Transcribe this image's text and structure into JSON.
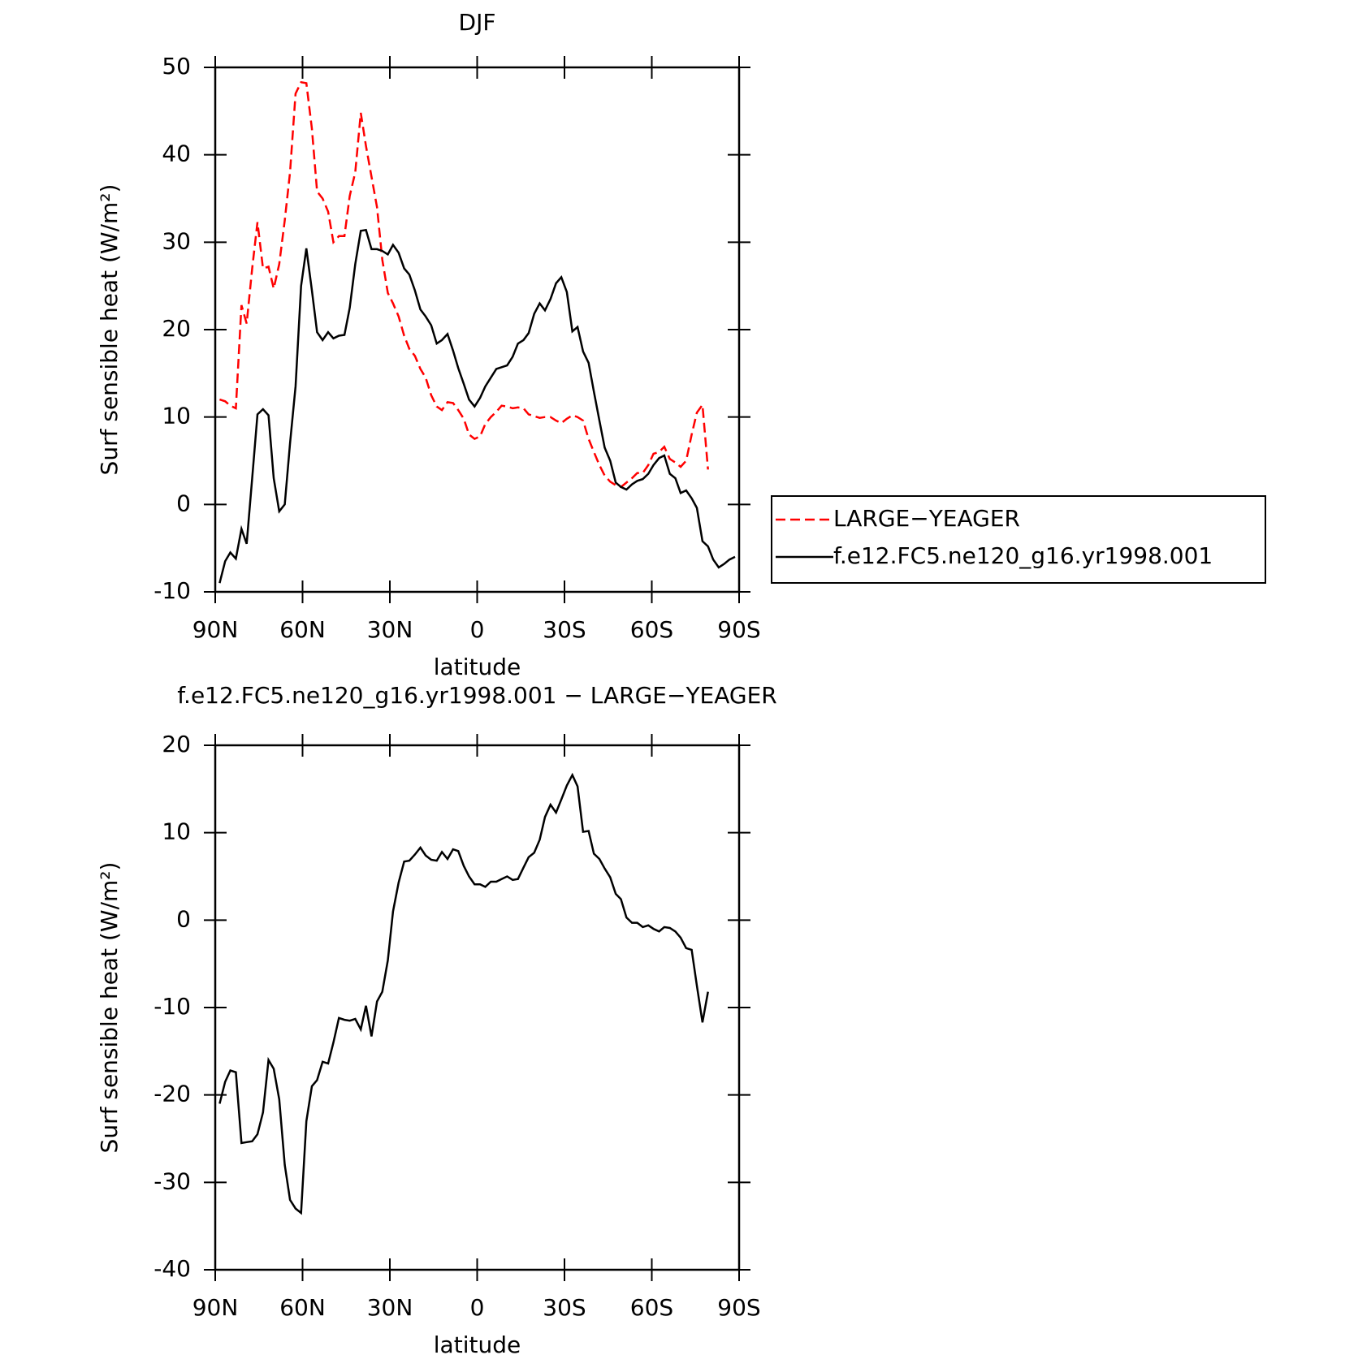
{
  "chart_data": [
    {
      "type": "line",
      "title": "DJF",
      "xlabel": "latitude",
      "ylabel": "Surf sensible heat (W/m²)",
      "xlim": [
        90,
        -90
      ],
      "xticks": [
        {
          "value": 90,
          "label": "90N"
        },
        {
          "value": 60,
          "label": "60N"
        },
        {
          "value": 30,
          "label": "30N"
        },
        0,
        {
          "value": -30,
          "label": "30S"
        },
        {
          "value": -60,
          "label": "60S"
        },
        {
          "value": -90,
          "label": "90S"
        }
      ],
      "ylim": [
        -10,
        50
      ],
      "yticks": [
        -10,
        0,
        10,
        20,
        30,
        40,
        50
      ],
      "legend": "right",
      "x": [
        88.5,
        86.6,
        84.8,
        82.9,
        81.0,
        79.2,
        77.3,
        75.5,
        73.6,
        71.7,
        69.9,
        68.0,
        66.1,
        64.3,
        62.4,
        60.5,
        58.7,
        56.8,
        55.0,
        53.1,
        51.2,
        49.4,
        47.5,
        45.6,
        43.8,
        41.9,
        40.0,
        38.2,
        36.3,
        34.4,
        32.6,
        30.7,
        28.9,
        27.0,
        25.1,
        23.3,
        21.4,
        19.5,
        17.7,
        15.8,
        13.9,
        12.1,
        10.2,
        8.3,
        6.5,
        4.6,
        2.8,
        0.9,
        -1.0,
        -2.8,
        -4.7,
        -6.6,
        -8.4,
        -10.3,
        -12.2,
        -14.0,
        -15.9,
        -17.7,
        -19.6,
        -21.5,
        -23.3,
        -25.2,
        -27.1,
        -28.9,
        -30.8,
        -32.7,
        -34.5,
        -36.4,
        -38.3,
        -40.1,
        -42.0,
        -43.8,
        -45.7,
        -47.6,
        -49.4,
        -51.3,
        -53.2,
        -55.0,
        -56.9,
        -58.8,
        -60.6,
        -62.5,
        -64.3,
        -66.2,
        -68.1,
        -69.9,
        -71.8,
        -73.7,
        -75.5,
        -77.4,
        -79.3,
        -81.1,
        -83.0,
        -84.9,
        -86.7,
        -88.6
      ],
      "series": [
        {
          "name": "LARGE−YEAGER",
          "color": "#ff0000",
          "dash": "dashed",
          "values": [
            12,
            11.8,
            11.3,
            11,
            22.8,
            20.7,
            27,
            32.3,
            27,
            27.2,
            24.7,
            27.5,
            32.5,
            38,
            47,
            48.3,
            48.2,
            43,
            35.8,
            35,
            33.5,
            30,
            30.7,
            30.7,
            35.3,
            38,
            44.8,
            41,
            37.5,
            34,
            28,
            24.2,
            23,
            21.5,
            19.3,
            17.8,
            17,
            15.5,
            14.5,
            12.5,
            11.2,
            10.8,
            11.7,
            11.6,
            10.8,
            9.8,
            8,
            7.5,
            7.8,
            9.2,
            10,
            10.6,
            11.3,
            11.2,
            11,
            11.1,
            11,
            10.3,
            10.1,
            9.9,
            10,
            10,
            9.6,
            9.3,
            9.8,
            10.2,
            10,
            9.6,
            7.5,
            6,
            4.5,
            3.3,
            2.6,
            2.2,
            2,
            2.5,
            3,
            3.6,
            3.6,
            4.5,
            5.8,
            6,
            6.6,
            5.2,
            4.8,
            4.3,
            5,
            8,
            10.5,
            11.4,
            4,
            null,
            null,
            null,
            null,
            null
          ]
        },
        {
          "name": "f.e12.FC5.ne120_g16.yr1998.001",
          "color": "#000000",
          "dash": "solid",
          "values": [
            -9,
            -6.5,
            -5.5,
            -6.2,
            -2.8,
            -4.5,
            3,
            10.3,
            10.9,
            10.2,
            3,
            -0.8,
            0,
            7,
            13.5,
            25,
            29.3,
            24.5,
            19.7,
            18.8,
            19.7,
            19,
            19.3,
            19.4,
            22.5,
            27.5,
            31.3,
            31.4,
            29.2,
            29.2,
            29,
            28.6,
            29.7,
            28.8,
            27,
            26.3,
            24.5,
            22.3,
            21.5,
            20.5,
            18.4,
            18.8,
            19.5,
            17.6,
            15.6,
            13.8,
            12,
            11.2,
            12.2,
            13.5,
            14.5,
            15.5,
            15.7,
            15.9,
            16.9,
            18.4,
            18.8,
            19.6,
            21.8,
            23,
            22.2,
            23.5,
            25.3,
            26,
            24.3,
            19.8,
            20.3,
            17.5,
            16.2,
            12.9,
            9.6,
            6.5,
            5,
            2.5,
            2,
            1.7,
            2.3,
            2.7,
            2.9,
            3.5,
            4.5,
            5.3,
            5.6,
            3.5,
            3,
            1.3,
            1.6,
            0.7,
            -0.4,
            -4.2,
            -4.8,
            -6.3,
            -7.2,
            -6.8,
            -6.3,
            -6
          ]
        }
      ]
    },
    {
      "type": "line",
      "title": "f.e12.FC5.ne120_g16.yr1998.001 − LARGE−YEAGER",
      "xlabel": "latitude",
      "ylabel": "Surf sensible heat (W/m²)",
      "xlim": [
        90,
        -90
      ],
      "xticks": [
        {
          "value": 90,
          "label": "90N"
        },
        {
          "value": 60,
          "label": "60N"
        },
        {
          "value": 30,
          "label": "30N"
        },
        0,
        {
          "value": -30,
          "label": "30S"
        },
        {
          "value": -60,
          "label": "60S"
        },
        {
          "value": -90,
          "label": "90S"
        }
      ],
      "ylim": [
        -40,
        20
      ],
      "yticks": [
        -40,
        -30,
        -20,
        -10,
        0,
        10,
        20
      ],
      "x": [
        88.5,
        86.6,
        84.8,
        82.9,
        81.0,
        79.2,
        77.3,
        75.5,
        73.6,
        71.7,
        69.9,
        68.0,
        66.1,
        64.3,
        62.4,
        60.5,
        58.7,
        56.8,
        55.0,
        53.1,
        51.2,
        49.4,
        47.5,
        45.6,
        43.8,
        41.9,
        40.0,
        38.2,
        36.3,
        34.4,
        32.6,
        30.7,
        28.9,
        27.0,
        25.1,
        23.3,
        21.4,
        19.5,
        17.7,
        15.8,
        13.9,
        12.1,
        10.2,
        8.3,
        6.5,
        4.6,
        2.8,
        0.9,
        -1.0,
        -2.8,
        -4.7,
        -6.6,
        -8.4,
        -10.3,
        -12.2,
        -14.0,
        -15.9,
        -17.7,
        -19.6,
        -21.5,
        -23.3,
        -25.2,
        -27.1,
        -28.9,
        -30.8,
        -32.7,
        -34.5,
        -36.4,
        -38.3,
        -40.1,
        -42.0,
        -43.8,
        -45.7,
        -47.6,
        -49.4,
        -51.3,
        -53.2,
        -55.0,
        -56.9,
        -58.8,
        -60.6,
        -62.5,
        -64.3,
        -66.2,
        -68.1,
        -69.9,
        -71.8,
        -73.7,
        -75.5,
        -77.4,
        -79.3,
        -81.1,
        -83.0,
        -84.9,
        -86.7,
        -88.6
      ],
      "series": [
        {
          "color": "#000000",
          "dash": "solid",
          "values": [
            -21,
            -18.5,
            -17.2,
            -17.4,
            -25.5,
            -25.4,
            -25.3,
            -24.5,
            -22,
            -16,
            -17,
            -20.5,
            -28,
            -32,
            -33,
            -33.5,
            -23,
            -19,
            -18.3,
            -16.2,
            -16.4,
            -14,
            -11.2,
            -11.4,
            -11.5,
            -11.3,
            -12.5,
            -9.8,
            -13.3,
            -9.3,
            -8.2,
            -4.6,
            1,
            4.3,
            6.7,
            6.8,
            7.5,
            8.3,
            7.4,
            6.9,
            6.8,
            7.8,
            7,
            8.1,
            7.9,
            6.2,
            5,
            4.1,
            4.1,
            3.8,
            4.4,
            4.4,
            4.7,
            5,
            4.6,
            4.7,
            6,
            7.2,
            7.7,
            9.2,
            11.8,
            13.2,
            12.3,
            13.8,
            15.4,
            16.6,
            15.3,
            10.1,
            10.2,
            7.6,
            7,
            5.9,
            4.9,
            3,
            2.4,
            0.3,
            -0.3,
            -0.3,
            -0.8,
            -0.6,
            -1,
            -1.3,
            -0.8,
            -0.9,
            -1.3,
            -2,
            -3.2,
            -3.4,
            -7.5,
            -11.7,
            -8.2,
            null,
            null,
            null,
            null,
            null
          ]
        }
      ]
    }
  ]
}
